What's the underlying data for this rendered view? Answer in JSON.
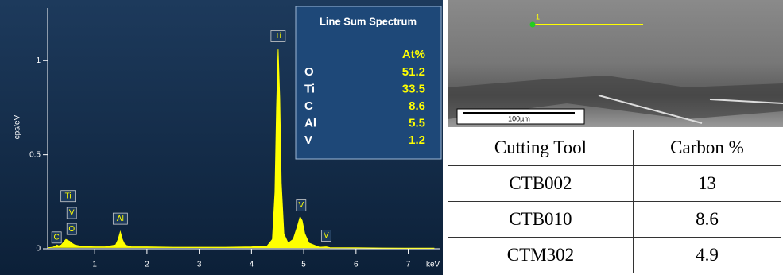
{
  "chart_data": {
    "type": "area",
    "y_label": "cps/eV",
    "x_label": "keV",
    "color": "#ffff00",
    "x": [
      0.1,
      0.2,
      0.25,
      0.28,
      0.31,
      0.36,
      0.42,
      0.45,
      0.48,
      0.52,
      0.56,
      0.62,
      0.7,
      0.8,
      1.0,
      1.2,
      1.4,
      1.45,
      1.49,
      1.53,
      1.58,
      1.7,
      2.0,
      2.5,
      3.0,
      3.5,
      4.0,
      4.3,
      4.4,
      4.45,
      4.48,
      4.51,
      4.54,
      4.57,
      4.62,
      4.7,
      4.8,
      4.88,
      4.93,
      4.97,
      5.02,
      5.1,
      5.3,
      5.43,
      5.5,
      6.0,
      6.5,
      7.0,
      7.5
    ],
    "values": [
      0.005,
      0.008,
      0.015,
      0.02,
      0.015,
      0.02,
      0.04,
      0.05,
      0.045,
      0.04,
      0.03,
      0.02,
      0.015,
      0.012,
      0.01,
      0.01,
      0.02,
      0.05,
      0.09,
      0.05,
      0.02,
      0.01,
      0.01,
      0.008,
      0.008,
      0.008,
      0.01,
      0.015,
      0.05,
      0.3,
      0.75,
      1.06,
      0.8,
      0.35,
      0.08,
      0.03,
      0.05,
      0.12,
      0.17,
      0.15,
      0.08,
      0.03,
      0.008,
      0.01,
      0.006,
      0.005,
      0.004,
      0.003,
      0.003
    ],
    "xlim": [
      0.1,
      7.6
    ],
    "ylim": [
      0,
      1.28
    ],
    "xticks": [
      1,
      2,
      3,
      4,
      5,
      6,
      7
    ],
    "yticks": [
      0,
      0.5,
      1
    ],
    "peak_labels": [
      {
        "label": "C",
        "x": 0.27,
        "y": 0.06
      },
      {
        "label": "Ti",
        "x": 0.49,
        "y": 0.28
      },
      {
        "label": "V",
        "x": 0.56,
        "y": 0.19
      },
      {
        "label": "O",
        "x": 0.56,
        "y": 0.105
      },
      {
        "label": "Al",
        "x": 1.49,
        "y": 0.16
      },
      {
        "label": "Ti",
        "x": 4.51,
        "y": 1.13
      },
      {
        "label": "V",
        "x": 4.95,
        "y": 0.23
      },
      {
        "label": "V",
        "x": 5.43,
        "y": 0.07
      }
    ],
    "inset": {
      "title": "Line Sum Spectrum",
      "header": "At%",
      "rows": [
        [
          "O",
          "51.2"
        ],
        [
          "Ti",
          "33.5"
        ],
        [
          "C",
          "8.6"
        ],
        [
          "Al",
          "5.5"
        ],
        [
          "V",
          "1.2"
        ]
      ]
    }
  },
  "image": {
    "marker": "1",
    "scale": "100µm"
  },
  "table": {
    "header": [
      "Cutting Tool",
      "Carbon %"
    ],
    "rows": [
      [
        "CTB002",
        "13"
      ],
      [
        "CTB010",
        "8.6"
      ],
      [
        "CTM302",
        "4.9"
      ]
    ]
  }
}
